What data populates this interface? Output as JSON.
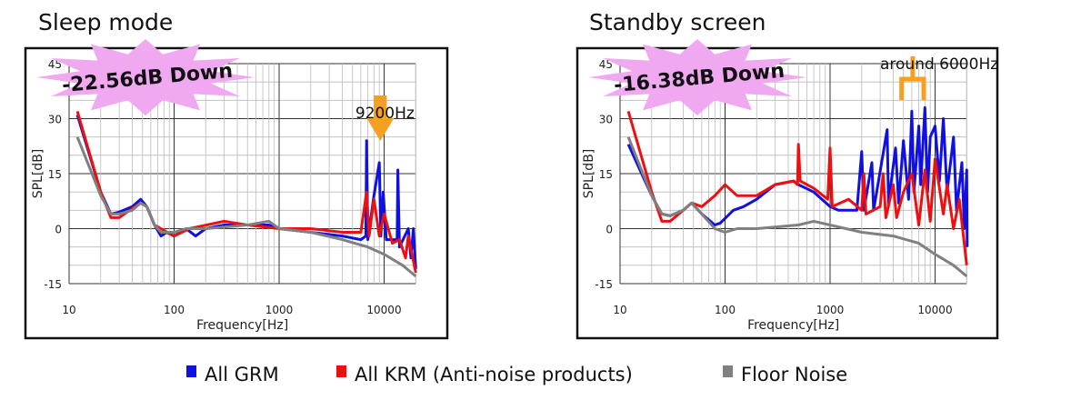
{
  "legend": [
    {
      "label": "All GRM",
      "color": "#1010e0"
    },
    {
      "label": "All KRM (Anti-noise products)",
      "color": "#ee1010"
    },
    {
      "label": "Floor Noise",
      "color": "#808080"
    }
  ],
  "chart_data": [
    {
      "type": "line",
      "title": "Sleep mode",
      "xlabel": "Frequency[Hz]",
      "ylabel": "SPL[dB]",
      "xscale": "log",
      "xlim": [
        10,
        20000
      ],
      "ylim": [
        -15,
        45
      ],
      "xticks": [
        "10",
        "100",
        "1000",
        "10000"
      ],
      "yticks": [
        "45",
        "30",
        "15",
        "0",
        "-15"
      ],
      "grid": true,
      "annotations": {
        "burst": "-22.56dB Down",
        "marker": "9200Hz",
        "marker_color": "#f5a020",
        "burst_color": "#f0a8f0"
      },
      "series": [
        {
          "name": "All GRM",
          "color": "#1010e0",
          "points": [
            [
              12,
              31
            ],
            [
              20,
              10
            ],
            [
              25,
              4
            ],
            [
              30,
              4.5
            ],
            [
              40,
              6
            ],
            [
              48,
              8
            ],
            [
              55,
              6
            ],
            [
              65,
              1
            ],
            [
              75,
              -2
            ],
            [
              85,
              -1
            ],
            [
              100,
              -2
            ],
            [
              130,
              0
            ],
            [
              160,
              -2
            ],
            [
              200,
              0
            ],
            [
              300,
              1
            ],
            [
              500,
              1
            ],
            [
              800,
              1
            ],
            [
              1000,
              0
            ],
            [
              2000,
              -1
            ],
            [
              4000,
              -2
            ],
            [
              6000,
              -3
            ],
            [
              6700,
              -2
            ],
            [
              6800,
              24
            ],
            [
              7000,
              -3
            ],
            [
              8000,
              9
            ],
            [
              9000,
              18
            ],
            [
              9300,
              -2
            ],
            [
              9800,
              10
            ],
            [
              10500,
              -3
            ],
            [
              13300,
              -3
            ],
            [
              13500,
              16
            ],
            [
              14000,
              -5
            ],
            [
              17000,
              0
            ],
            [
              18000,
              -8
            ],
            [
              19000,
              0
            ],
            [
              20000,
              -11
            ]
          ]
        },
        {
          "name": "All KRM (Anti-noise products)",
          "color": "#ee1010",
          "points": [
            [
              12,
              32
            ],
            [
              20,
              10
            ],
            [
              25,
              3
            ],
            [
              30,
              3
            ],
            [
              40,
              5.5
            ],
            [
              48,
              7
            ],
            [
              55,
              6
            ],
            [
              65,
              1
            ],
            [
              75,
              0
            ],
            [
              100,
              -2
            ],
            [
              140,
              0
            ],
            [
              300,
              2
            ],
            [
              500,
              1
            ],
            [
              1000,
              0
            ],
            [
              2000,
              0
            ],
            [
              4000,
              -1
            ],
            [
              6000,
              -1
            ],
            [
              6800,
              10
            ],
            [
              7200,
              -2
            ],
            [
              8000,
              8
            ],
            [
              9000,
              -2
            ],
            [
              10000,
              4
            ],
            [
              12000,
              -4
            ],
            [
              14000,
              -3
            ],
            [
              16000,
              -8
            ],
            [
              17000,
              -2
            ],
            [
              20000,
              -12
            ]
          ]
        },
        {
          "name": "Floor Noise",
          "color": "#808080",
          "points": [
            [
              12,
              25
            ],
            [
              20,
              9
            ],
            [
              25,
              4
            ],
            [
              30,
              4
            ],
            [
              40,
              5
            ],
            [
              48,
              7
            ],
            [
              55,
              6
            ],
            [
              65,
              1
            ],
            [
              75,
              -1
            ],
            [
              100,
              -1
            ],
            [
              130,
              0
            ],
            [
              200,
              0
            ],
            [
              500,
              1
            ],
            [
              800,
              2
            ],
            [
              1000,
              0
            ],
            [
              2000,
              -1
            ],
            [
              4000,
              -3
            ],
            [
              7000,
              -5
            ],
            [
              10000,
              -7
            ],
            [
              15000,
              -10
            ],
            [
              20000,
              -13
            ]
          ]
        }
      ]
    },
    {
      "type": "line",
      "title": "Standby screen",
      "xlabel": "Frequency[Hz]",
      "ylabel": "SPL[dB]",
      "xscale": "log",
      "xlim": [
        10,
        20000
      ],
      "ylim": [
        -15,
        45
      ],
      "xticks": [
        "10",
        "100",
        "1000",
        "10000"
      ],
      "yticks": [
        "45",
        "30",
        "15",
        "0",
        "-15"
      ],
      "grid": true,
      "annotations": {
        "burst": "-16.38dB Down",
        "marker": "around 6000Hz",
        "marker_color": "#f5a020",
        "burst_color": "#f0a8f0"
      },
      "series": [
        {
          "name": "All GRM",
          "color": "#1010e0",
          "points": [
            [
              12,
              23
            ],
            [
              20,
              9
            ],
            [
              25,
              4
            ],
            [
              30,
              3.5
            ],
            [
              40,
              5
            ],
            [
              48,
              7
            ],
            [
              60,
              4
            ],
            [
              80,
              1
            ],
            [
              90,
              1.5
            ],
            [
              120,
              5
            ],
            [
              150,
              6
            ],
            [
              200,
              8
            ],
            [
              300,
              12
            ],
            [
              450,
              13
            ],
            [
              500,
              12
            ],
            [
              700,
              10
            ],
            [
              1000,
              6
            ],
            [
              1200,
              5
            ],
            [
              1800,
              5
            ],
            [
              2000,
              21
            ],
            [
              2100,
              5
            ],
            [
              2500,
              18
            ],
            [
              2600,
              5
            ],
            [
              3500,
              27
            ],
            [
              3600,
              7
            ],
            [
              4200,
              22
            ],
            [
              4500,
              7
            ],
            [
              5000,
              24
            ],
            [
              5600,
              8
            ],
            [
              6000,
              32
            ],
            [
              6300,
              10
            ],
            [
              7000,
              28
            ],
            [
              7300,
              12
            ],
            [
              8000,
              33
            ],
            [
              8500,
              10
            ],
            [
              9000,
              25
            ],
            [
              10000,
              28
            ],
            [
              11000,
              13
            ],
            [
              12000,
              30
            ],
            [
              13000,
              10
            ],
            [
              15000,
              25
            ],
            [
              16000,
              5
            ],
            [
              18000,
              18
            ],
            [
              19000,
              0
            ],
            [
              20000,
              16
            ],
            [
              20200,
              -5
            ]
          ]
        },
        {
          "name": "All KRM (Anti-noise products)",
          "color": "#ee1010",
          "points": [
            [
              12,
              32
            ],
            [
              20,
              10
            ],
            [
              25,
              2
            ],
            [
              30,
              2
            ],
            [
              40,
              5
            ],
            [
              48,
              7
            ],
            [
              60,
              6
            ],
            [
              80,
              9
            ],
            [
              100,
              12
            ],
            [
              130,
              9
            ],
            [
              200,
              9
            ],
            [
              300,
              12
            ],
            [
              450,
              13
            ],
            [
              490,
              12
            ],
            [
              500,
              23
            ],
            [
              520,
              13
            ],
            [
              700,
              11
            ],
            [
              950,
              8
            ],
            [
              1000,
              22
            ],
            [
              1050,
              6
            ],
            [
              1500,
              8
            ],
            [
              2000,
              5
            ],
            [
              2100,
              15
            ],
            [
              2200,
              4
            ],
            [
              3000,
              6
            ],
            [
              3200,
              15
            ],
            [
              3400,
              3
            ],
            [
              4000,
              12
            ],
            [
              4300,
              3
            ],
            [
              5000,
              10
            ],
            [
              6000,
              15
            ],
            [
              7000,
              1
            ],
            [
              8000,
              16
            ],
            [
              9000,
              2
            ],
            [
              10000,
              19
            ],
            [
              12000,
              4
            ],
            [
              13000,
              12
            ],
            [
              15000,
              0
            ],
            [
              17000,
              8
            ],
            [
              20000,
              -10
            ]
          ]
        },
        {
          "name": "Floor Noise",
          "color": "#808080",
          "points": [
            [
              12,
              25
            ],
            [
              20,
              9
            ],
            [
              25,
              4
            ],
            [
              30,
              3.5
            ],
            [
              40,
              5
            ],
            [
              48,
              7
            ],
            [
              60,
              4
            ],
            [
              80,
              0
            ],
            [
              100,
              -1
            ],
            [
              130,
              0
            ],
            [
              200,
              0
            ],
            [
              500,
              1
            ],
            [
              700,
              2
            ],
            [
              1000,
              1
            ],
            [
              2000,
              -1
            ],
            [
              4000,
              -2
            ],
            [
              7000,
              -4
            ],
            [
              10000,
              -7
            ],
            [
              15000,
              -10
            ],
            [
              20000,
              -13
            ]
          ]
        }
      ]
    }
  ]
}
